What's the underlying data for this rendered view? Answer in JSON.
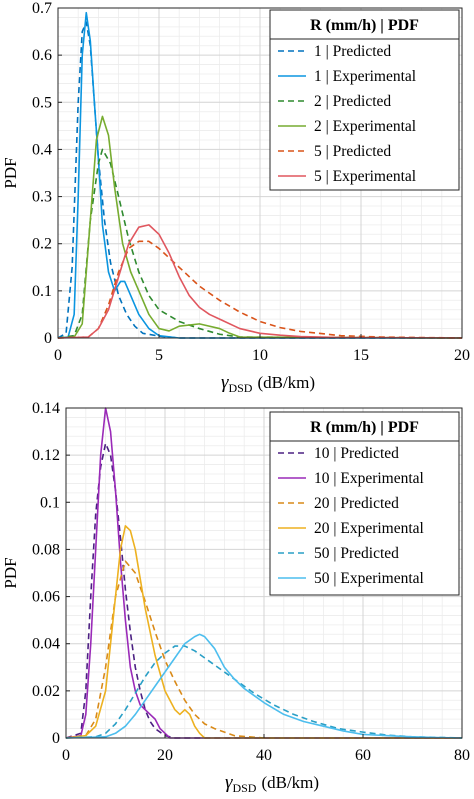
{
  "chart_data": [
    {
      "type": "line",
      "xlabel_symbol": "γ",
      "xlabel_sub": "DSD",
      "xlabel_unit": "(dB/km)",
      "ylabel": "PDF",
      "xlim": [
        0,
        20
      ],
      "ylim": [
        0,
        0.7
      ],
      "xticks": [
        0,
        5,
        10,
        15,
        20
      ],
      "yticks": [
        0,
        0.1,
        0.2,
        0.3,
        0.4,
        0.5,
        0.6,
        0.7
      ],
      "xtick_labels": [
        "0",
        "5",
        "10",
        "15",
        "20"
      ],
      "ytick_labels": [
        "0",
        "0.1",
        "0.2",
        "0.3",
        "0.4",
        "0.5",
        "0.6",
        "0.7"
      ],
      "grid": true,
      "legend_title": "R (mm/h) | PDF",
      "legend_position": "top-right",
      "series": [
        {
          "name": "1 | Predicted",
          "color": "#0072BD",
          "dash": true,
          "x": [
            0,
            0.4,
            0.7,
            1.0,
            1.2,
            1.4,
            1.6,
            1.8,
            2.0,
            2.3,
            2.6,
            3.0,
            3.4,
            3.8,
            4.2,
            5.0,
            6.0,
            20
          ],
          "y": [
            0,
            0.01,
            0.15,
            0.5,
            0.65,
            0.67,
            0.62,
            0.5,
            0.38,
            0.25,
            0.16,
            0.09,
            0.05,
            0.025,
            0.01,
            0.004,
            0,
            0
          ]
        },
        {
          "name": "1 | Experimental",
          "color": "#0B95E0",
          "dash": false,
          "x": [
            0,
            0.5,
            0.8,
            1.0,
            1.2,
            1.4,
            1.6,
            1.8,
            2.0,
            2.2,
            2.5,
            2.8,
            3.1,
            3.3,
            3.6,
            4.0,
            4.5,
            5.0,
            6.0,
            20
          ],
          "y": [
            0,
            0.002,
            0.05,
            0.3,
            0.6,
            0.69,
            0.63,
            0.5,
            0.38,
            0.24,
            0.14,
            0.1,
            0.12,
            0.12,
            0.09,
            0.05,
            0.02,
            0.005,
            0,
            0
          ]
        },
        {
          "name": "2 | Predicted",
          "color": "#2F8A2F",
          "dash": true,
          "x": [
            0,
            0.8,
            1.2,
            1.6,
            2.0,
            2.2,
            2.6,
            3.0,
            3.5,
            4.0,
            4.5,
            5.0,
            6.0,
            7.0,
            8.0,
            9.0,
            20
          ],
          "y": [
            0,
            0.005,
            0.05,
            0.25,
            0.37,
            0.4,
            0.37,
            0.3,
            0.21,
            0.14,
            0.09,
            0.06,
            0.035,
            0.02,
            0.008,
            0.002,
            0
          ]
        },
        {
          "name": "2 | Experimental",
          "color": "#77AC30",
          "dash": false,
          "x": [
            0,
            0.8,
            1.2,
            1.6,
            1.9,
            2.2,
            2.5,
            2.8,
            3.2,
            3.6,
            4.0,
            4.5,
            5.0,
            5.5,
            6.0,
            7.0,
            8.0,
            8.5,
            9.0,
            20
          ],
          "y": [
            0,
            0.002,
            0.03,
            0.25,
            0.42,
            0.47,
            0.43,
            0.32,
            0.2,
            0.14,
            0.1,
            0.05,
            0.02,
            0.015,
            0.025,
            0.03,
            0.02,
            0.01,
            0.002,
            0
          ]
        },
        {
          "name": "5 | Predicted",
          "color": "#D95319",
          "dash": true,
          "x": [
            0,
            1.5,
            2.0,
            2.5,
            3.0,
            3.5,
            4.0,
            4.5,
            5.0,
            6.0,
            7.0,
            8.0,
            9.0,
            10,
            11,
            12,
            14,
            16,
            20
          ],
          "y": [
            0,
            0.002,
            0.02,
            0.07,
            0.14,
            0.19,
            0.205,
            0.205,
            0.19,
            0.15,
            0.11,
            0.08,
            0.055,
            0.035,
            0.022,
            0.014,
            0.005,
            0.002,
            0
          ]
        },
        {
          "name": "5 | Experimental",
          "color": "#E0575F",
          "dash": false,
          "x": [
            0,
            1.5,
            2.0,
            2.5,
            3.0,
            3.5,
            4.0,
            4.5,
            5.0,
            5.5,
            6.0,
            6.5,
            7.0,
            7.5,
            8.0,
            9.0,
            10,
            11,
            12,
            14,
            20
          ],
          "y": [
            0,
            0.002,
            0.02,
            0.06,
            0.13,
            0.2,
            0.235,
            0.24,
            0.22,
            0.18,
            0.13,
            0.09,
            0.065,
            0.05,
            0.04,
            0.02,
            0.01,
            0.006,
            0.003,
            0.001,
            0
          ]
        }
      ]
    },
    {
      "type": "line",
      "xlabel_symbol": "γ",
      "xlabel_sub": "DSD",
      "xlabel_unit": "(dB/km)",
      "ylabel": "PDF",
      "xlim": [
        0,
        80
      ],
      "ylim": [
        0,
        0.14
      ],
      "xticks": [
        0,
        20,
        40,
        60,
        80
      ],
      "yticks": [
        0,
        0.02,
        0.04,
        0.06,
        0.08,
        0.1,
        0.12,
        0.14
      ],
      "xtick_labels": [
        "0",
        "20",
        "40",
        "60",
        "80"
      ],
      "ytick_labels": [
        "0",
        "0.02",
        "0.04",
        "0.06",
        "0.08",
        "0.1",
        "0.12",
        "0.14"
      ],
      "grid": true,
      "legend_title": "R (mm/h) | PDF",
      "legend_position": "top-right",
      "series": [
        {
          "name": "10 | Predicted",
          "color": "#4B2082",
          "dash": true,
          "x": [
            0,
            3,
            4,
            5,
            6,
            7,
            8,
            9,
            10,
            11,
            12,
            13,
            14,
            15,
            16,
            17,
            18,
            20,
            22,
            80
          ],
          "y": [
            0,
            0.002,
            0.02,
            0.06,
            0.095,
            0.115,
            0.125,
            0.12,
            0.105,
            0.085,
            0.063,
            0.045,
            0.03,
            0.02,
            0.012,
            0.007,
            0.004,
            0.001,
            0,
            0
          ]
        },
        {
          "name": "10 | Experimental",
          "color": "#9A2AB8",
          "dash": false,
          "x": [
            0,
            3,
            4,
            5,
            6,
            7,
            8,
            9,
            10,
            11,
            12,
            13,
            14,
            15,
            16,
            17,
            18,
            19,
            20,
            21,
            80
          ],
          "y": [
            0,
            0.001,
            0.01,
            0.04,
            0.08,
            0.12,
            0.14,
            0.13,
            0.105,
            0.075,
            0.05,
            0.03,
            0.02,
            0.014,
            0.012,
            0.01,
            0.008,
            0.004,
            0.002,
            0,
            0
          ]
        },
        {
          "name": "20 | Predicted",
          "color": "#D98A18",
          "dash": true,
          "x": [
            0,
            4,
            6,
            8,
            10,
            12,
            14,
            16,
            18,
            20,
            22,
            24,
            26,
            28,
            30,
            34,
            40,
            80
          ],
          "y": [
            0,
            0.001,
            0.008,
            0.03,
            0.06,
            0.075,
            0.07,
            0.058,
            0.045,
            0.033,
            0.024,
            0.016,
            0.01,
            0.006,
            0.004,
            0.001,
            0,
            0
          ]
        },
        {
          "name": "20 | Experimental",
          "color": "#EDB120",
          "dash": false,
          "x": [
            0,
            4,
            6,
            8,
            10,
            11,
            12,
            13,
            14,
            16,
            18,
            20,
            22,
            23,
            24,
            25,
            26,
            27,
            28,
            80
          ],
          "y": [
            0,
            0.001,
            0.005,
            0.02,
            0.06,
            0.08,
            0.09,
            0.088,
            0.08,
            0.055,
            0.035,
            0.02,
            0.012,
            0.01,
            0.012,
            0.01,
            0.005,
            0.002,
            0,
            0
          ]
        },
        {
          "name": "50 | Predicted",
          "color": "#2A9FC6",
          "dash": true,
          "x": [
            0,
            6,
            8,
            10,
            12,
            14,
            16,
            18,
            20,
            22,
            24,
            26,
            28,
            30,
            34,
            38,
            42,
            46,
            50,
            55,
            60,
            65,
            70,
            80
          ],
          "y": [
            0,
            0.0005,
            0.002,
            0.006,
            0.012,
            0.019,
            0.026,
            0.032,
            0.036,
            0.039,
            0.039,
            0.037,
            0.034,
            0.031,
            0.025,
            0.019,
            0.014,
            0.01,
            0.007,
            0.004,
            0.0025,
            0.0012,
            0.0005,
            0
          ]
        },
        {
          "name": "50 | Experimental",
          "color": "#4DBEEE",
          "dash": false,
          "x": [
            0,
            8,
            10,
            12,
            14,
            16,
            18,
            20,
            22,
            24,
            26,
            27,
            28,
            30,
            32,
            34,
            36,
            38,
            40,
            44,
            48,
            52,
            56,
            60,
            65,
            70,
            75,
            80
          ],
          "y": [
            0,
            0.0005,
            0.002,
            0.005,
            0.01,
            0.016,
            0.022,
            0.028,
            0.034,
            0.04,
            0.043,
            0.044,
            0.043,
            0.038,
            0.03,
            0.025,
            0.021,
            0.018,
            0.015,
            0.01,
            0.007,
            0.005,
            0.003,
            0.0015,
            0.001,
            0.0005,
            0.0002,
            0
          ]
        }
      ]
    }
  ]
}
